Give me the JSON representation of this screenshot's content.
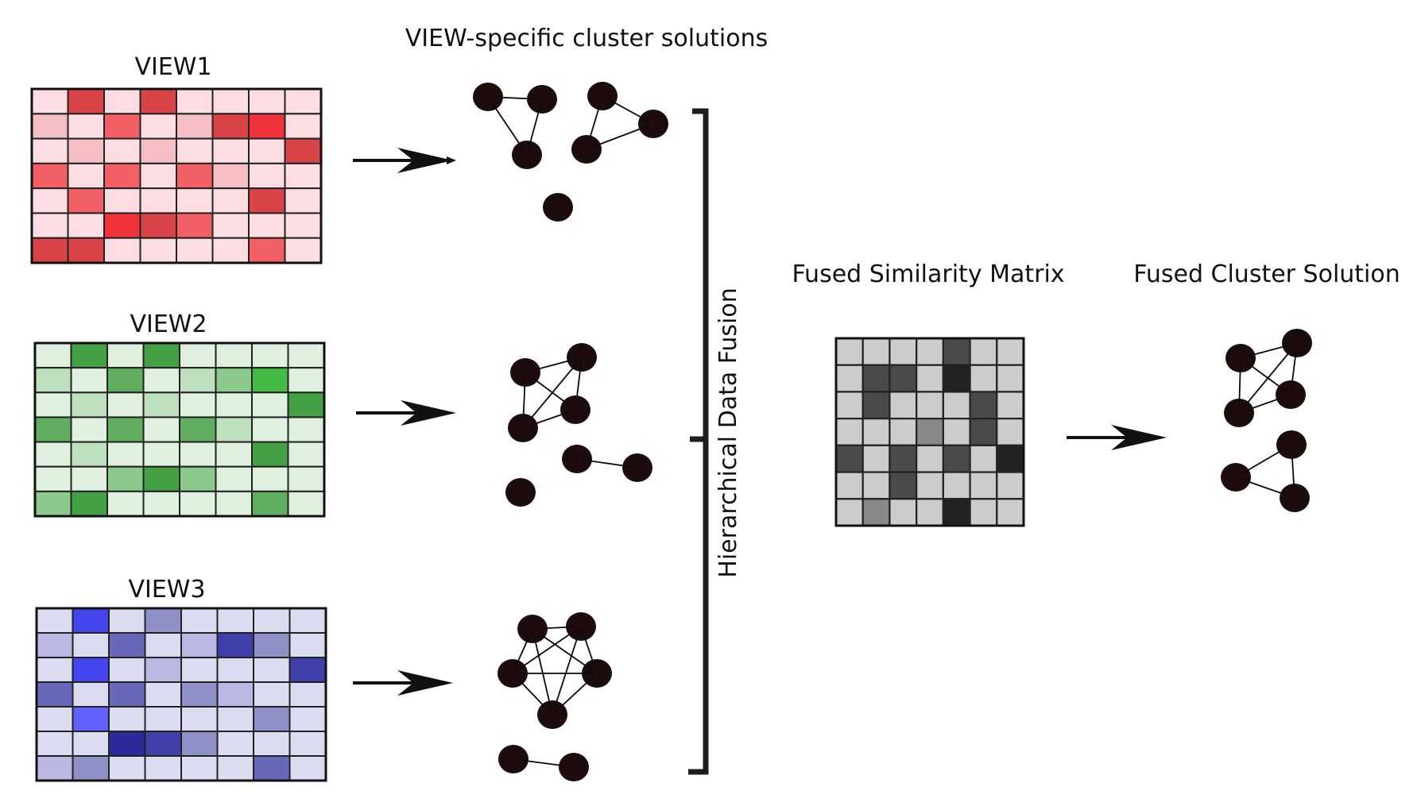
{
  "titles": {
    "view1": "VIEW1",
    "view2": "VIEW2",
    "view3": "VIEW3",
    "cluster_solutions": "VIEW-specific cluster solutions",
    "fusion": "Hierarchical Data Fusion",
    "fused_matrix": "Fused Similarity Matrix",
    "fused_solution": "Fused Cluster Solution"
  },
  "colors": {
    "cell_border": "#222222",
    "arrow": "#111111",
    "node": "#1c0c0c",
    "bracket": "#1a1f1a",
    "view1_palette": [
      "#fbdde2",
      "#f5bec4",
      "#f26066",
      "#d94448",
      "#f0323a"
    ],
    "view2_palette": [
      "#dff0df",
      "#bfe0bf",
      "#8cc98c",
      "#60ad60",
      "#44a044",
      "#44bb44"
    ],
    "view3_palette": [
      "#dcdcf0",
      "#b8b8e2",
      "#9090c8",
      "#6868bb",
      "#4646ee",
      "#4040aa",
      "#2a2a9a",
      "#6060ff"
    ],
    "fused_palette": [
      "#cccccc",
      "#4a4a4a",
      "#888888",
      "#222222"
    ]
  },
  "matrices": {
    "view1": {
      "rows": 7,
      "cols": 8,
      "cells": [
        [
          0,
          3,
          0,
          3,
          0,
          0,
          0,
          0
        ],
        [
          1,
          0,
          2,
          0,
          1,
          3,
          4,
          0
        ],
        [
          0,
          1,
          0,
          1,
          0,
          0,
          0,
          3
        ],
        [
          2,
          0,
          2,
          0,
          2,
          1,
          0,
          0
        ],
        [
          0,
          2,
          0,
          0,
          0,
          0,
          3,
          0
        ],
        [
          0,
          0,
          4,
          3,
          2,
          0,
          0,
          0
        ],
        [
          3,
          3,
          0,
          0,
          0,
          0,
          2,
          0
        ]
      ]
    },
    "view2": {
      "rows": 7,
      "cols": 8,
      "cells": [
        [
          0,
          4,
          0,
          4,
          0,
          0,
          0,
          0
        ],
        [
          1,
          0,
          3,
          0,
          1,
          2,
          5,
          0
        ],
        [
          0,
          1,
          0,
          1,
          0,
          0,
          0,
          4
        ],
        [
          3,
          0,
          3,
          0,
          3,
          1,
          0,
          0
        ],
        [
          0,
          1,
          0,
          0,
          0,
          0,
          4,
          0
        ],
        [
          0,
          0,
          2,
          4,
          2,
          0,
          0,
          0
        ],
        [
          2,
          4,
          0,
          0,
          0,
          0,
          3,
          0
        ]
      ]
    },
    "view3": {
      "rows": 7,
      "cols": 8,
      "cells": [
        [
          0,
          4,
          0,
          2,
          0,
          0,
          0,
          0
        ],
        [
          1,
          0,
          3,
          0,
          1,
          5,
          2,
          0
        ],
        [
          0,
          4,
          0,
          1,
          0,
          0,
          0,
          5
        ],
        [
          3,
          0,
          3,
          0,
          2,
          1,
          0,
          0
        ],
        [
          0,
          7,
          0,
          0,
          0,
          0,
          2,
          0
        ],
        [
          0,
          0,
          6,
          5,
          2,
          0,
          0,
          0
        ],
        [
          1,
          2,
          0,
          0,
          0,
          0,
          3,
          0
        ]
      ]
    },
    "fused": {
      "rows": 7,
      "cols": 7,
      "cells": [
        [
          0,
          0,
          0,
          0,
          1,
          0,
          0
        ],
        [
          0,
          1,
          1,
          0,
          3,
          0,
          0
        ],
        [
          0,
          1,
          0,
          0,
          0,
          1,
          0
        ],
        [
          0,
          0,
          0,
          2,
          0,
          1,
          0
        ],
        [
          1,
          0,
          1,
          0,
          1,
          0,
          3
        ],
        [
          0,
          0,
          1,
          0,
          0,
          0,
          0
        ],
        [
          0,
          2,
          0,
          0,
          3,
          0,
          0
        ]
      ]
    }
  },
  "graphs": {
    "view1": {
      "nodes": [
        [
          0,
          0
        ],
        [
          1,
          0
        ],
        [
          2,
          0
        ],
        [
          3,
          0
        ],
        [
          4,
          0
        ],
        [
          5,
          0
        ],
        [
          6,
          0
        ]
      ],
      "edges": [
        [
          0,
          1
        ],
        [
          0,
          2
        ],
        [
          1,
          2
        ],
        [
          3,
          4
        ],
        [
          3,
          5
        ],
        [
          4,
          5
        ]
      ]
    },
    "view2": {
      "nodes": [
        [
          0,
          0
        ],
        [
          1,
          0
        ],
        [
          2,
          0
        ],
        [
          3,
          0
        ],
        [
          4,
          0
        ],
        [
          5,
          0
        ],
        [
          6,
          0
        ]
      ],
      "edges": [
        [
          0,
          1
        ],
        [
          0,
          2
        ],
        [
          0,
          3
        ],
        [
          1,
          2
        ],
        [
          1,
          3
        ],
        [
          2,
          3
        ],
        [
          4,
          5
        ]
      ]
    },
    "view3": {
      "nodes": [
        [
          0,
          0
        ],
        [
          1,
          0
        ],
        [
          2,
          0
        ],
        [
          3,
          0
        ],
        [
          4,
          0
        ],
        [
          5,
          0
        ],
        [
          6,
          0
        ]
      ],
      "edges": [
        [
          0,
          1
        ],
        [
          0,
          2
        ],
        [
          0,
          3
        ],
        [
          0,
          4
        ],
        [
          1,
          2
        ],
        [
          1,
          3
        ],
        [
          1,
          4
        ],
        [
          2,
          3
        ],
        [
          2,
          4
        ],
        [
          3,
          4
        ],
        [
          5,
          6
        ]
      ]
    },
    "fused": {
      "nodes": [
        [
          0,
          0
        ],
        [
          1,
          0
        ],
        [
          2,
          0
        ],
        [
          3,
          0
        ],
        [
          4,
          0
        ],
        [
          5,
          0
        ],
        [
          6,
          0
        ]
      ],
      "edges": [
        [
          0,
          1
        ],
        [
          0,
          2
        ],
        [
          0,
          3
        ],
        [
          1,
          2
        ],
        [
          1,
          3
        ],
        [
          2,
          3
        ],
        [
          4,
          5
        ],
        [
          4,
          6
        ],
        [
          5,
          6
        ]
      ]
    }
  }
}
